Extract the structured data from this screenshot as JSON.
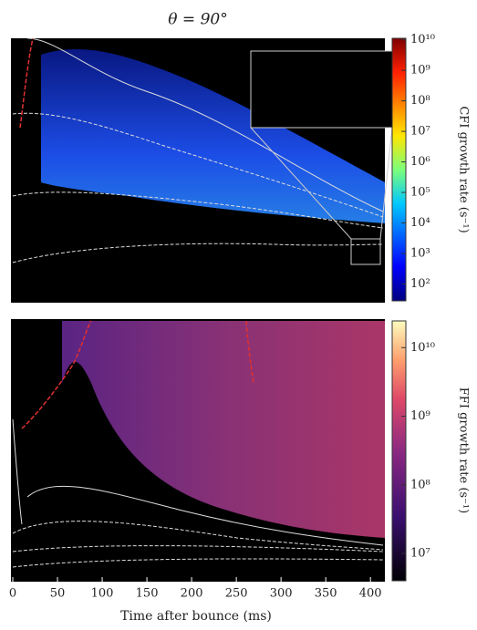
{
  "chart_data": [
    {
      "type": "heatmap",
      "title": "θ = 90°",
      "colorbar_label": "CFI growth rate (s⁻¹)",
      "colormap": "jet",
      "log_color": true,
      "clim": [
        28,
        11200000000
      ],
      "cticks": [
        {
          "value": 100,
          "label": "10²"
        },
        {
          "value": 1000,
          "label": "10³"
        },
        {
          "value": 10000,
          "label": "10⁴"
        },
        {
          "value": 100000,
          "label": "10⁵"
        },
        {
          "value": 1000000,
          "label": "10⁶"
        },
        {
          "value": 10000000,
          "label": "10⁷"
        },
        {
          "value": 100000000,
          "label": "10⁸"
        },
        {
          "value": 1000000000,
          "label": "10⁹"
        },
        {
          "value": 10000000000,
          "label": "10¹⁰"
        }
      ]
    },
    {
      "type": "heatmap",
      "colorbar_label": "FFI growth rate (s⁻¹)",
      "colormap": "magma",
      "log_color": true,
      "clim": [
        4000000,
        24500000000
      ],
      "cticks": [
        {
          "value": 10000000,
          "label": "10⁷"
        },
        {
          "value": 100000000,
          "label": "10⁸"
        },
        {
          "value": 1000000000,
          "label": "10⁹"
        },
        {
          "value": 10000000000,
          "label": "10¹⁰"
        }
      ],
      "xlabel": "Time after bounce (ms)",
      "xlim": [
        0,
        410
      ],
      "xticks": [
        0,
        50,
        100,
        150,
        200,
        250,
        300,
        350,
        400
      ]
    }
  ]
}
